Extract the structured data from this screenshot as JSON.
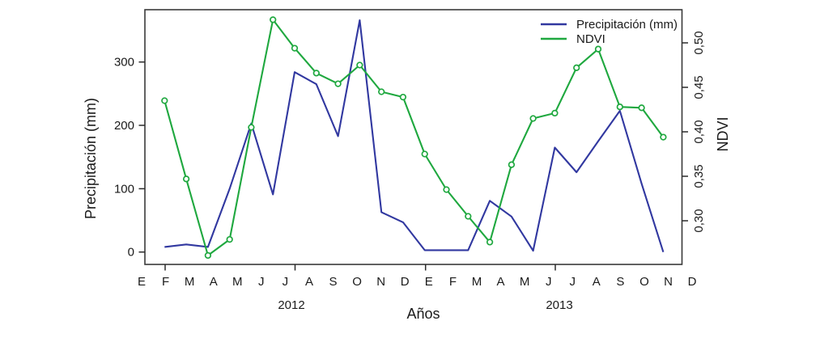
{
  "chart_data": {
    "type": "line",
    "title": "",
    "xlabel": "Años",
    "x_month_labels": [
      "E",
      "F",
      "M",
      "A",
      "M",
      "J",
      "J",
      "A",
      "S",
      "O",
      "N",
      "D",
      "E",
      "F",
      "M",
      "A",
      "M",
      "J",
      "J",
      "A",
      "S",
      "O",
      "N",
      "D"
    ],
    "year_labels": [
      "2012",
      "2013"
    ],
    "left_axis": {
      "title": "Precipitación (mm)",
      "tick_values": [
        0,
        100,
        200,
        300
      ],
      "tick_labels": [
        "0",
        "100",
        "200",
        "300"
      ],
      "range": [
        -20,
        385
      ]
    },
    "right_axis": {
      "title": "NDVI",
      "tick_values": [
        0.3,
        0.35,
        0.4,
        0.45,
        0.5
      ],
      "tick_labels": [
        "0,30",
        "0,35",
        "0,40",
        "0,45",
        "0,50"
      ],
      "range": [
        0.247,
        0.537
      ]
    },
    "legend": {
      "position": "top-right",
      "frame": false
    },
    "grid": false,
    "series": [
      {
        "name": "Precipitación (mm)",
        "axis": "left",
        "color": "#3138a0",
        "marker": "none",
        "values": [
          8,
          12,
          8,
          100,
          203,
          91,
          284,
          265,
          183,
          366,
          63,
          47,
          3,
          3,
          3,
          81,
          56,
          2,
          165,
          126,
          175,
          223,
          108,
          0
        ]
      },
      {
        "name": "NDVI",
        "axis": "right",
        "color": "#1fa83f",
        "marker": "open-circle",
        "values": [
          0.435,
          0.347,
          0.261,
          0.279,
          0.405,
          0.526,
          0.494,
          0.466,
          0.454,
          0.475,
          0.445,
          0.439,
          0.375,
          0.335,
          0.305,
          0.276,
          0.363,
          0.415,
          0.421,
          0.472,
          0.493,
          0.428,
          0.427,
          0.394
        ]
      }
    ]
  }
}
